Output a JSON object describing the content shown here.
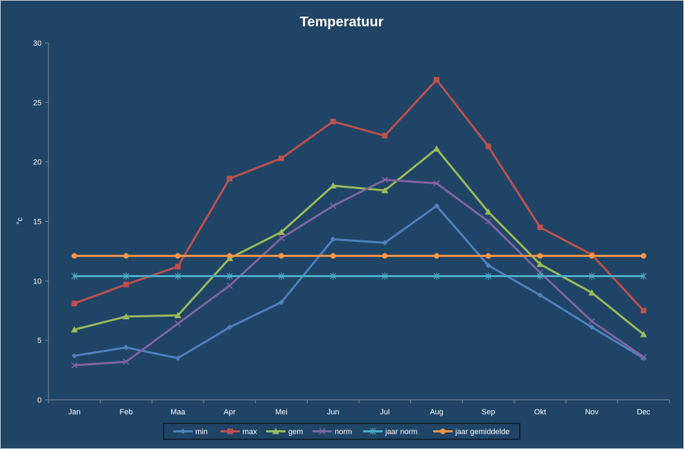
{
  "chart_data": {
    "type": "line",
    "title": "Temperatuur",
    "xlabel": "",
    "ylabel": "°c",
    "ylim": [
      0,
      30
    ],
    "yticks": [
      0,
      5,
      10,
      15,
      20,
      25,
      30
    ],
    "categories": [
      "Jan",
      "Feb",
      "Maa",
      "Apr",
      "Mei",
      "Jun",
      "Jul",
      "Aug",
      "Sep",
      "Okt",
      "Nov",
      "Dec"
    ],
    "grid": false,
    "legend_position": "bottom",
    "series": [
      {
        "name": "min",
        "color": "#4f81bd",
        "marker": "diamond",
        "values": [
          3.7,
          4.4,
          3.5,
          6.1,
          8.2,
          13.5,
          13.2,
          16.3,
          11.3,
          8.8,
          6.1,
          3.5
        ]
      },
      {
        "name": "max",
        "color": "#c0504d",
        "marker": "square",
        "values": [
          8.1,
          9.7,
          11.2,
          18.6,
          20.3,
          23.4,
          22.2,
          26.9,
          21.3,
          14.5,
          12.2,
          7.5
        ]
      },
      {
        "name": "gem",
        "color": "#9bbb59",
        "marker": "triangle",
        "values": [
          5.9,
          7.0,
          7.1,
          11.9,
          14.1,
          18.0,
          17.6,
          21.1,
          15.8,
          11.4,
          9.0,
          5.5
        ]
      },
      {
        "name": "norm",
        "color": "#8064a2",
        "marker": "x",
        "values": [
          2.9,
          3.2,
          6.4,
          9.6,
          13.6,
          16.3,
          18.5,
          18.2,
          15.0,
          10.7,
          6.6,
          3.6
        ]
      },
      {
        "name": "jaar norm",
        "color": "#4bacc6",
        "marker": "star",
        "values": [
          10.4,
          10.4,
          10.4,
          10.4,
          10.4,
          10.4,
          10.4,
          10.4,
          10.4,
          10.4,
          10.4,
          10.4
        ]
      },
      {
        "name": "jaar gemiddelde",
        "color": "#f79646",
        "marker": "circle",
        "values": [
          12.1,
          12.1,
          12.1,
          12.1,
          12.1,
          12.1,
          12.1,
          12.1,
          12.1,
          12.1,
          12.1,
          12.1
        ]
      }
    ]
  }
}
